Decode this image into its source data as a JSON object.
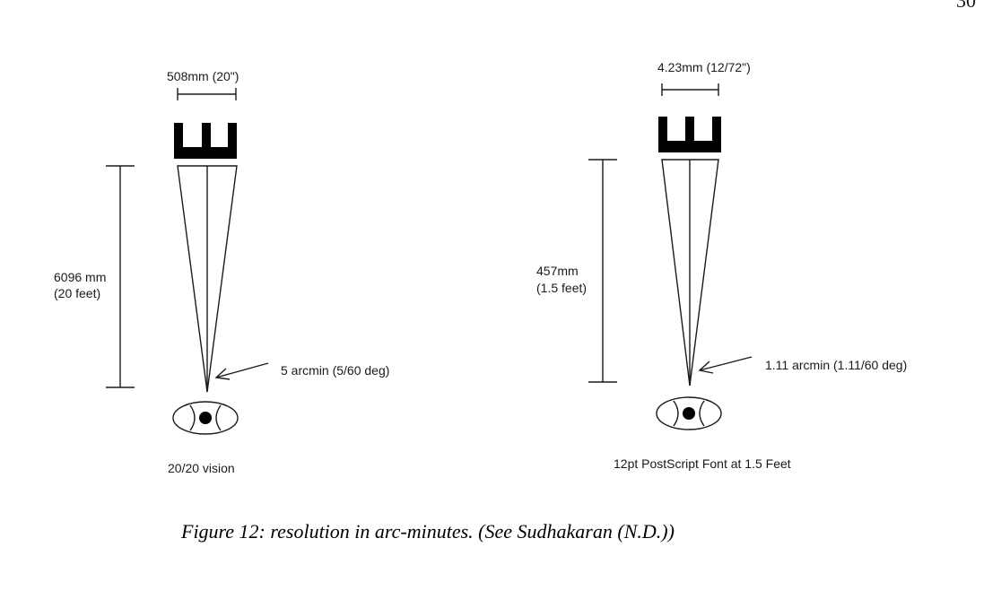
{
  "page_number": "30",
  "caption": "Figure 12: resolution in arc-minutes.  (See Sudhakaran (N.D.))",
  "left_diagram": {
    "letter_size_label": "508mm (20\")",
    "distance_label_line1": "6096 mm",
    "distance_label_line2": "(20 feet)",
    "angle_label": "5 arcmin (5/60 deg)",
    "subtitle": "20/20 vision"
  },
  "right_diagram": {
    "letter_size_label": "4.23mm (12/72\")",
    "distance_label_line1": "457mm",
    "distance_label_line2": "(1.5 feet)",
    "angle_label": "1.11 arcmin (1.11/60 deg)",
    "subtitle": "12pt PostScript Font at 1.5 Feet"
  }
}
